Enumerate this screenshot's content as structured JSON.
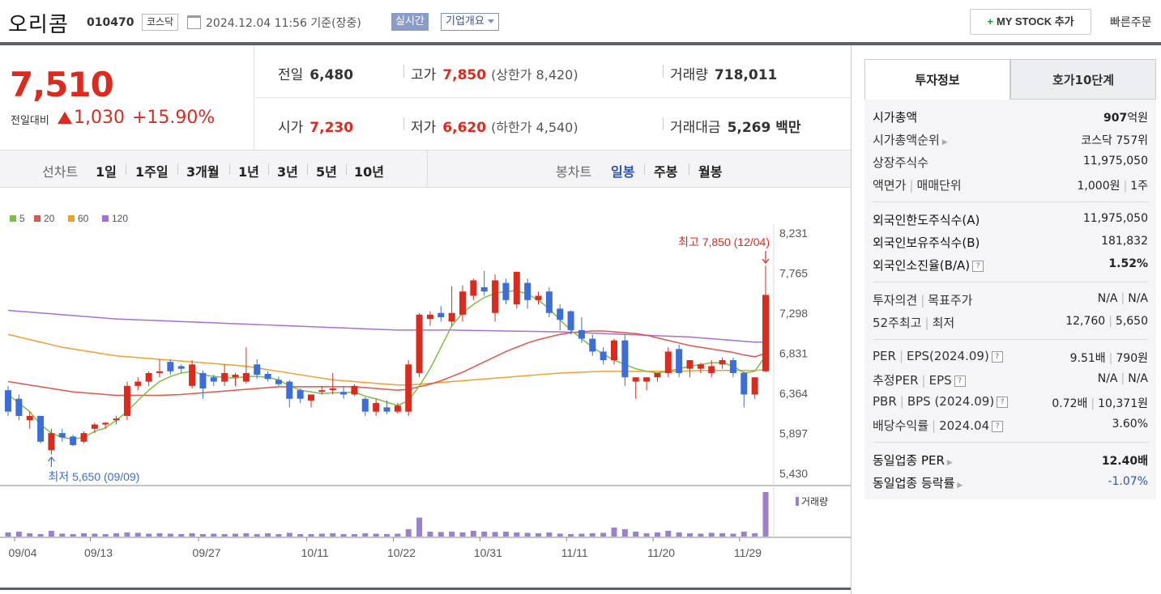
{
  "header": {
    "name": "오리콤",
    "code": "010470",
    "market": "코스닥",
    "datetime": "2024.12.04 11:56 기준(장중)",
    "realtime": "실시간",
    "company_info": "기업개요",
    "mystock": "MY STOCK 추가",
    "mystock_plus": "+",
    "quick_order": "빠른주문"
  },
  "quote": {
    "price": "7,510",
    "change_label": "전일대비",
    "change": "1,030",
    "change_pct": "+15.90%",
    "prev_label": "전일",
    "prev": "6,480",
    "high_label": "고가",
    "high": "7,850",
    "upper_limit": "(상한가 8,420)",
    "volume_label": "거래량",
    "volume": "718,011",
    "open_label": "시가",
    "open": "7,230",
    "low_label": "저가",
    "low": "6,620",
    "lower_limit": "(하한가 4,540)",
    "amount_label": "거래대금",
    "amount": "5,269 백만"
  },
  "periods": {
    "line_label": "선차트",
    "line_options": [
      "1일",
      "1주일",
      "3개월",
      "1년",
      "3년",
      "5년",
      "10년"
    ],
    "candle_label": "봉차트",
    "candle_options": [
      "일봉",
      "주봉",
      "월봉"
    ],
    "candle_selected": "일봉"
  },
  "chart_data": {
    "type": "candlestick",
    "legend": [
      {
        "name": "5",
        "color": "#7cc043"
      },
      {
        "name": "20",
        "color": "#e0564b"
      },
      {
        "name": "60",
        "color": "#f0a030"
      },
      {
        "name": "120",
        "color": "#a770d8"
      }
    ],
    "y_ticks": [
      "8,231",
      "7,765",
      "7,298",
      "6,831",
      "6,364",
      "5,897",
      "5,430"
    ],
    "ylim": [
      5430,
      8231
    ],
    "x_labels": [
      "09/04",
      "09/13",
      "09/27",
      "10/11",
      "10/22",
      "10/31",
      "11/11",
      "11/20",
      "11/29"
    ],
    "high_annotation": "최고 7,850 (12/04)",
    "low_annotation": "최저 5,650 (09/09)",
    "volume_label": "거래량",
    "colors": {
      "up": "#dd2a1f",
      "down": "#3b6ed8",
      "volume": "#9a82c9"
    },
    "candles": [
      [
        6400,
        6450,
        6100,
        6150
      ],
      [
        6300,
        6350,
        6050,
        6100
      ],
      [
        6050,
        6150,
        5950,
        6100
      ],
      [
        6100,
        6100,
        5780,
        5800
      ],
      [
        5700,
        5950,
        5650,
        5900
      ],
      [
        5900,
        5950,
        5800,
        5850
      ],
      [
        5860,
        5880,
        5750,
        5760
      ],
      [
        5800,
        5920,
        5780,
        5900
      ],
      [
        5950,
        6020,
        5900,
        6000
      ],
      [
        6000,
        6030,
        5950,
        6020
      ],
      [
        6050,
        6100,
        6000,
        6070
      ],
      [
        6100,
        6500,
        6050,
        6450
      ],
      [
        6450,
        6550,
        6400,
        6500
      ],
      [
        6500,
        6620,
        6450,
        6600
      ],
      [
        6600,
        6760,
        6550,
        6620
      ],
      [
        6730,
        6760,
        6580,
        6620
      ],
      [
        6680,
        6700,
        6600,
        6650
      ],
      [
        6450,
        6750,
        6420,
        6700
      ],
      [
        6600,
        6630,
        6300,
        6420
      ],
      [
        6550,
        6580,
        6450,
        6500
      ],
      [
        6500,
        6700,
        6450,
        6600
      ],
      [
        6550,
        6600,
        6450,
        6580
      ],
      [
        6500,
        6900,
        6480,
        6600
      ],
      [
        6700,
        6760,
        6530,
        6580
      ],
      [
        6590,
        6620,
        6500,
        6530
      ],
      [
        6520,
        6560,
        6450,
        6470
      ],
      [
        6500,
        6520,
        6200,
        6300
      ],
      [
        6400,
        6420,
        6250,
        6300
      ],
      [
        6280,
        6350,
        6200,
        6350
      ],
      [
        6380,
        6450,
        6350,
        6400
      ],
      [
        6400,
        6600,
        6350,
        6420
      ],
      [
        6380,
        6450,
        6300,
        6350
      ],
      [
        6350,
        6470,
        6330,
        6450
      ],
      [
        6300,
        6320,
        6100,
        6150
      ],
      [
        6150,
        6300,
        6100,
        6250
      ],
      [
        6200,
        6280,
        6120,
        6150
      ],
      [
        6150,
        6250,
        6130,
        6220
      ],
      [
        6150,
        6750,
        6100,
        6700
      ],
      [
        6600,
        7300,
        6550,
        7280
      ],
      [
        7230,
        7320,
        7150,
        7280
      ],
      [
        7300,
        7380,
        7200,
        7250
      ],
      [
        7200,
        7610,
        7150,
        7300
      ],
      [
        7280,
        7620,
        7200,
        7550
      ],
      [
        7500,
        7700,
        7450,
        7680
      ],
      [
        7600,
        7790,
        7500,
        7550
      ],
      [
        7300,
        7750,
        7200,
        7680
      ],
      [
        7650,
        7700,
        7400,
        7450
      ],
      [
        7400,
        7780,
        7350,
        7780
      ],
      [
        7650,
        7700,
        7350,
        7450
      ],
      [
        7450,
        7550,
        7400,
        7500
      ],
      [
        7550,
        7600,
        7250,
        7300
      ],
      [
        7350,
        7400,
        7100,
        7220
      ],
      [
        7320,
        7330,
        7050,
        7100
      ],
      [
        7100,
        7250,
        6950,
        7000
      ],
      [
        7000,
        7050,
        6800,
        6850
      ],
      [
        6850,
        6900,
        6700,
        6750
      ],
      [
        6750,
        7000,
        6700,
        6980
      ],
      [
        6980,
        7050,
        6450,
        6550
      ],
      [
        6500,
        6550,
        6300,
        6550
      ],
      [
        6500,
        6550,
        6400,
        6550
      ],
      [
        6550,
        6600,
        6500,
        6600
      ],
      [
        6600,
        6900,
        6550,
        6850
      ],
      [
        6880,
        6930,
        6550,
        6600
      ],
      [
        6650,
        6750,
        6550,
        6750
      ],
      [
        6650,
        6720,
        6600,
        6700
      ],
      [
        6600,
        6750,
        6550,
        6680
      ],
      [
        6700,
        6780,
        6650,
        6750
      ],
      [
        6750,
        6780,
        6550,
        6600
      ],
      [
        6600,
        6620,
        6200,
        6350
      ],
      [
        6350,
        6550,
        6300,
        6550
      ],
      [
        6620,
        7850,
        6620,
        7510
      ]
    ],
    "ma5": [
      6350,
      6250,
      6150,
      6000,
      5900,
      5850,
      5830,
      5850,
      5920,
      5960,
      6050,
      6150,
      6280,
      6400,
      6500,
      6560,
      6600,
      6620,
      6580,
      6560,
      6550,
      6540,
      6560,
      6560,
      6550,
      6520,
      6450,
      6400,
      6380,
      6360,
      6370,
      6370,
      6380,
      6330,
      6300,
      6260,
      6220,
      6280,
      6450,
      6650,
      6900,
      7150,
      7300,
      7400,
      7480,
      7530,
      7550,
      7560,
      7520,
      7450,
      7350,
      7220,
      7100,
      7000,
      6900,
      6820,
      6750,
      6700,
      6650,
      6620,
      6600,
      6620,
      6650,
      6680,
      6700,
      6720,
      6720,
      6680,
      6600,
      6620,
      6800
    ],
    "ma20": [
      6500,
      6480,
      6460,
      6440,
      6420,
      6400,
      6380,
      6370,
      6360,
      6350,
      6340,
      6340,
      6340,
      6340,
      6340,
      6345,
      6350,
      6360,
      6370,
      6380,
      6390,
      6400,
      6410,
      6420,
      6430,
      6440,
      6440,
      6440,
      6440,
      6440,
      6440,
      6440,
      6440,
      6430,
      6420,
      6410,
      6400,
      6410,
      6440,
      6470,
      6510,
      6560,
      6610,
      6670,
      6730,
      6790,
      6850,
      6900,
      6950,
      6990,
      7020,
      7050,
      7070,
      7080,
      7090,
      7090,
      7080,
      7070,
      7060,
      7040,
      7010,
      6980,
      6950,
      6920,
      6900,
      6880,
      6860,
      6840,
      6810,
      6790,
      6830
    ],
    "ma60": [
      7050,
      7020,
      6990,
      6960,
      6930,
      6900,
      6880,
      6860,
      6840,
      6820,
      6800,
      6790,
      6780,
      6770,
      6760,
      6750,
      6740,
      6730,
      6720,
      6710,
      6700,
      6690,
      6680,
      6660,
      6640,
      6620,
      6600,
      6580,
      6560,
      6540,
      6520,
      6510,
      6500,
      6490,
      6480,
      6470,
      6460,
      6460,
      6470,
      6480,
      6490,
      6500,
      6510,
      6520,
      6530,
      6540,
      6550,
      6560,
      6570,
      6580,
      6590,
      6600,
      6605,
      6610,
      6615,
      6620,
      6620,
      6620,
      6620,
      6620,
      6620,
      6620,
      6620,
      6625,
      6630,
      6630,
      6630,
      6630,
      6630,
      6630,
      6640
    ],
    "ma120": [
      7330,
      7320,
      7310,
      7300,
      7290,
      7280,
      7270,
      7260,
      7250,
      7240,
      7230,
      7225,
      7220,
      7215,
      7210,
      7205,
      7200,
      7195,
      7190,
      7185,
      7180,
      7175,
      7170,
      7165,
      7160,
      7155,
      7150,
      7145,
      7140,
      7135,
      7130,
      7125,
      7120,
      7115,
      7110,
      7105,
      7100,
      7100,
      7100,
      7100,
      7100,
      7100,
      7098,
      7096,
      7094,
      7092,
      7090,
      7088,
      7086,
      7084,
      7082,
      7080,
      7075,
      7070,
      7065,
      7060,
      7055,
      7050,
      7045,
      7040,
      7035,
      7030,
      7025,
      7020,
      7010,
      7000,
      6990,
      6980,
      6970,
      6960,
      6960
    ],
    "volume": [
      50,
      60,
      40,
      30,
      70,
      35,
      30,
      40,
      35,
      30,
      40,
      50,
      45,
      35,
      40,
      35,
      30,
      40,
      30,
      35,
      30,
      35,
      40,
      30,
      40,
      30,
      45,
      30,
      30,
      35,
      40,
      30,
      30,
      40,
      35,
      30,
      35,
      90,
      230,
      60,
      55,
      60,
      50,
      70,
      60,
      55,
      60,
      50,
      45,
      40,
      50,
      35,
      30,
      35,
      40,
      45,
      110,
      90,
      60,
      40,
      50,
      70,
      50,
      40,
      35,
      45,
      40,
      35,
      60,
      40,
      540
    ]
  },
  "side": {
    "tab_active": "투자정보",
    "tab_other": "호가10단계",
    "sec1": [
      {
        "k": "시가총액",
        "v": "907",
        "unit": "억원"
      },
      {
        "k": "시가총액순위",
        "v": "코스닥 757위"
      },
      {
        "k": "상장주식수",
        "v": "11,975,050"
      },
      {
        "k1": "액면가",
        "k2": "매매단위",
        "v1": "1,000원",
        "v2": "1주"
      }
    ],
    "sec2": [
      {
        "k": "외국인한도주식수(A)",
        "v": "11,975,050"
      },
      {
        "k": "외국인보유주식수(B)",
        "v": "181,832"
      },
      {
        "k": "외국인소진율(B/A)",
        "v": "1.52%"
      }
    ],
    "sec3": [
      {
        "k1": "투자의견",
        "k2": "목표주가",
        "v1": "N/A",
        "v2": "N/A"
      },
      {
        "k1": "52주최고",
        "k2": "최저",
        "v1": "12,760",
        "v2": "5,650"
      }
    ],
    "sec4": [
      {
        "k1": "PER",
        "k2": "EPS(2024.09)",
        "v1": "9.51배",
        "v2": "790원"
      },
      {
        "k1": "추정PER",
        "k2": "EPS",
        "v1": "N/A",
        "v2": "N/A"
      },
      {
        "k1": "PBR",
        "k2": "BPS (2024.09)",
        "v1": "0.72배",
        "v2": "10,371원"
      },
      {
        "k1": "배당수익률",
        "k2": "2024.04",
        "v": "3.60%"
      }
    ],
    "sec5": [
      {
        "k": "동일업종 PER",
        "v": "12.40배"
      },
      {
        "k": "동일업종 등락률",
        "v": "-1.07%"
      }
    ]
  }
}
